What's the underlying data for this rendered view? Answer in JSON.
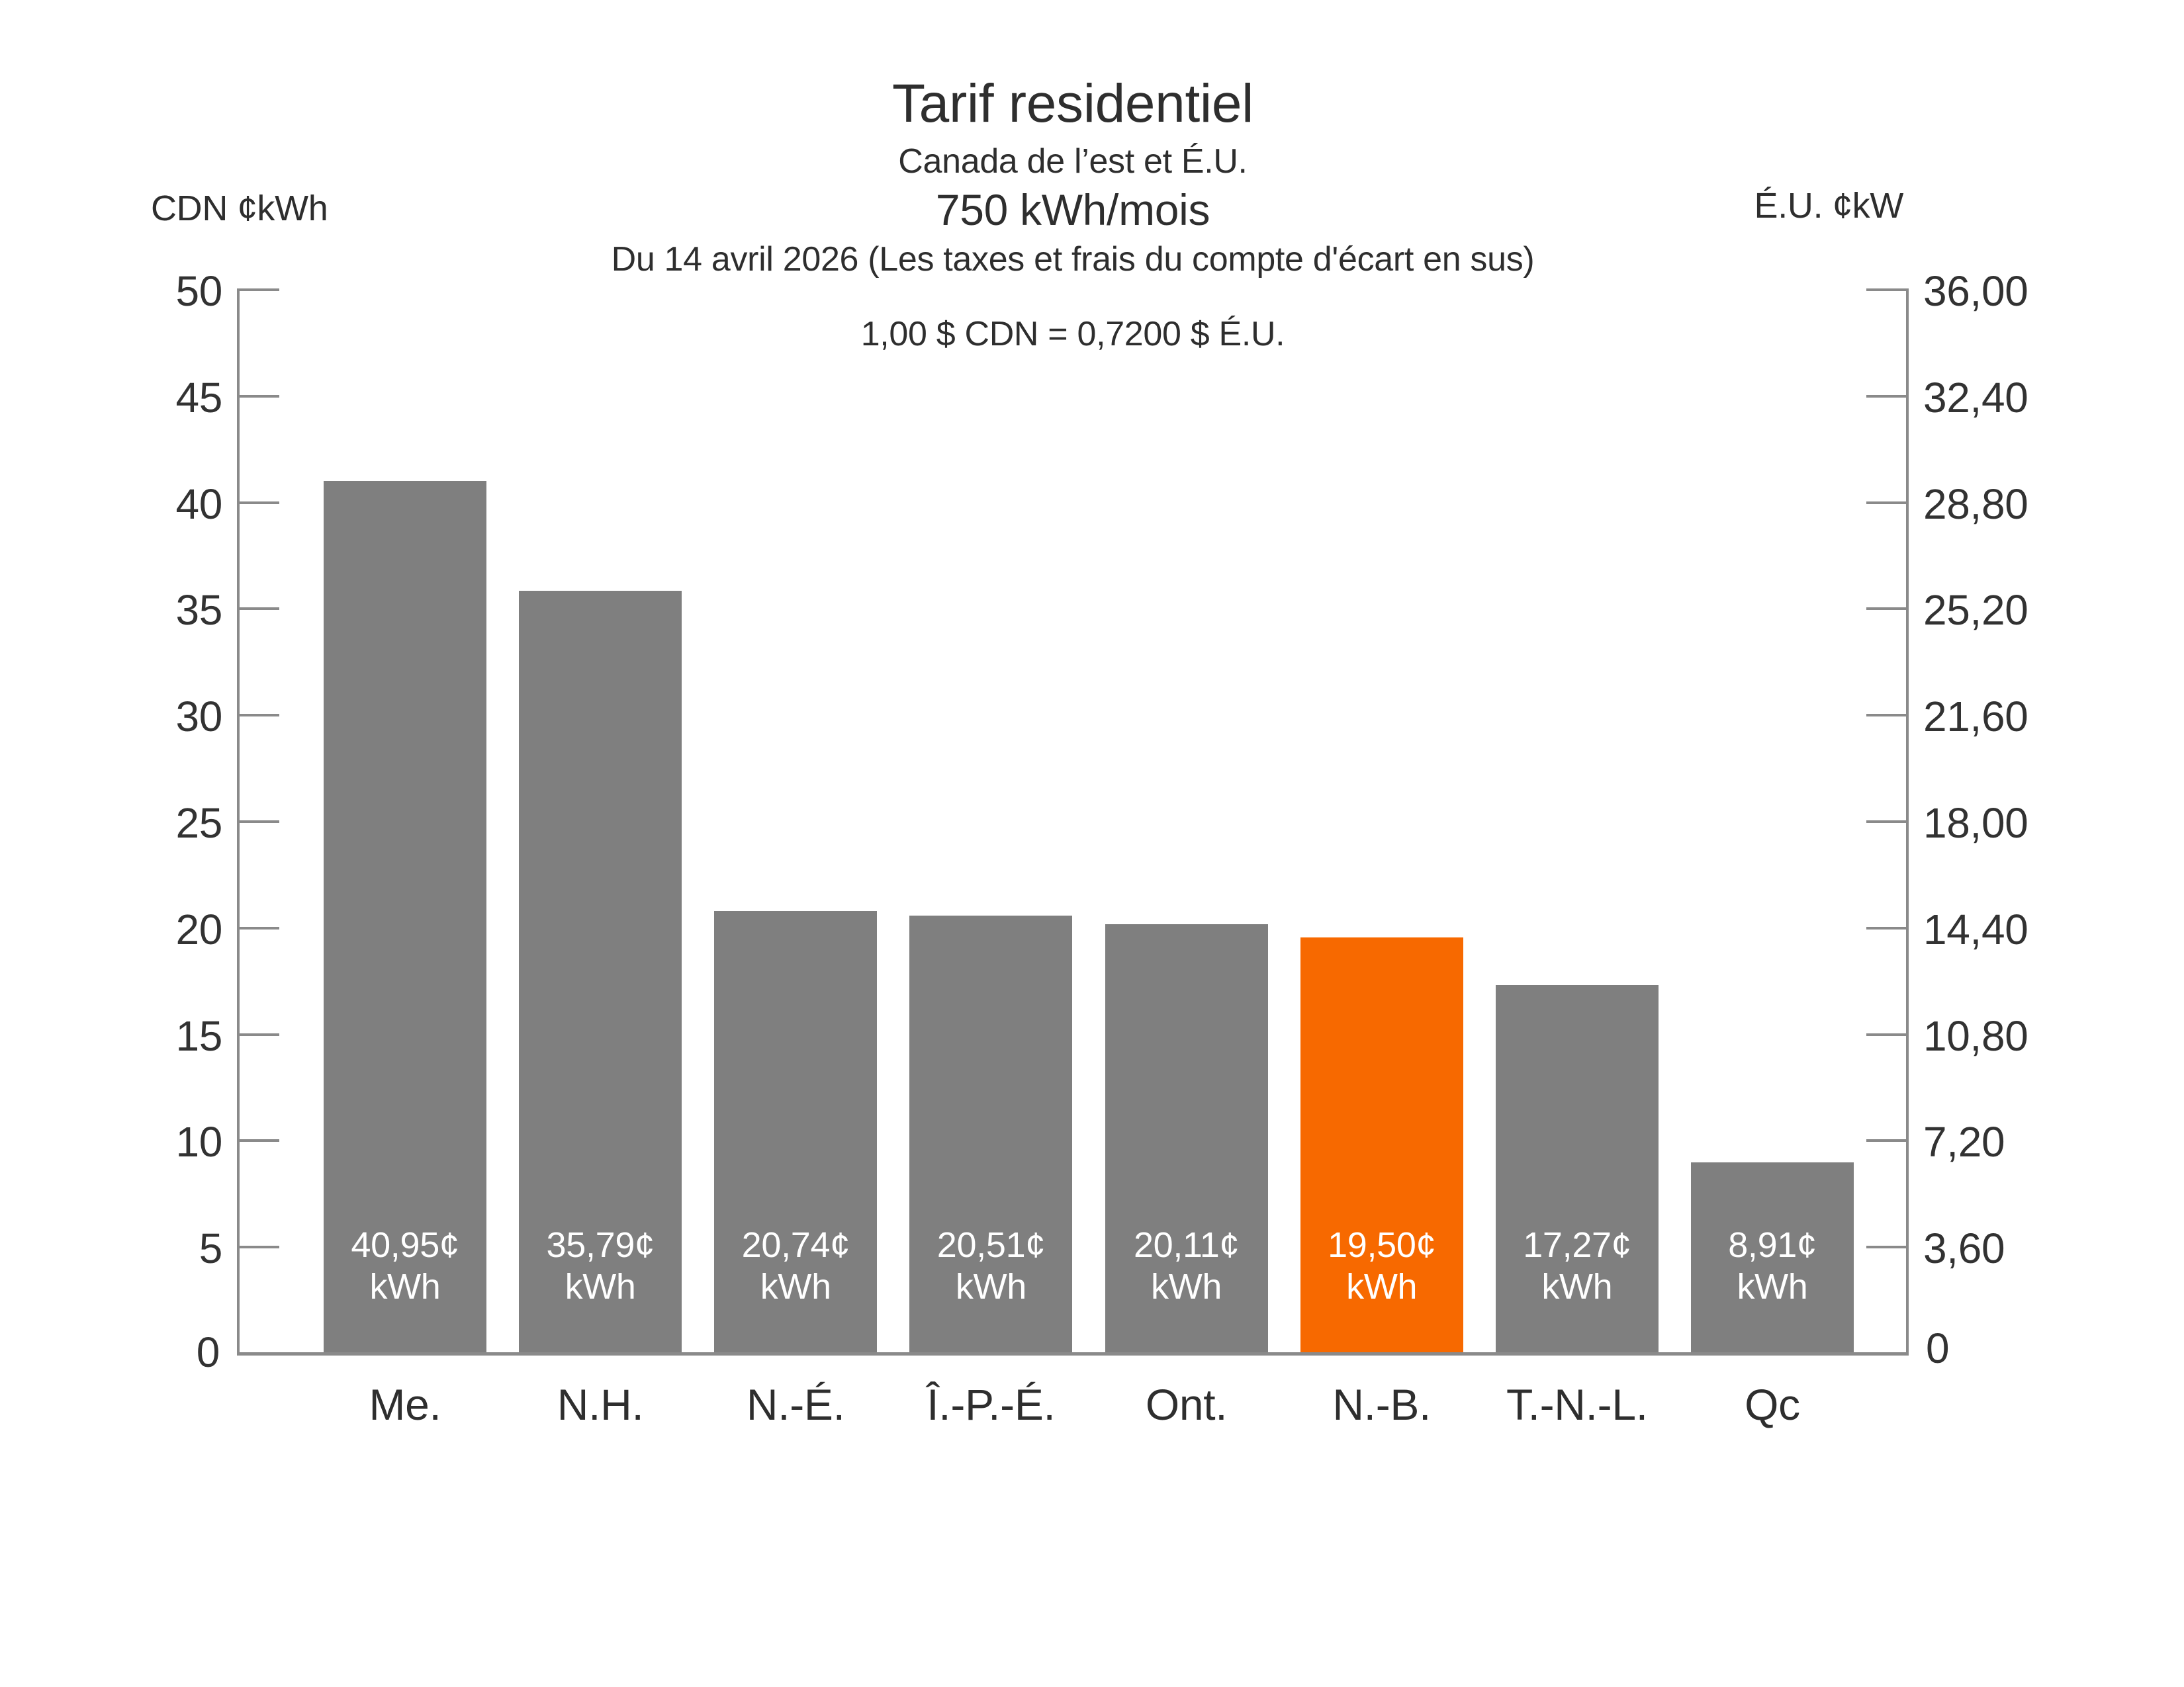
{
  "header": {
    "title": "Tarif residentiel",
    "subtitle": "Canada de l’est et É.U.",
    "consumption": "750 kWh/mois",
    "date_note": "Du 14 avril 2026 (Les taxes et frais du compte d'écart en sus)",
    "exchange_rate": "1,00 $ CDN = 0,7200 $ É.U."
  },
  "axes": {
    "left": {
      "label": "CDN ¢kWh",
      "ticks": [
        "50",
        "45",
        "40",
        "35",
        "30",
        "25",
        "20",
        "15",
        "10",
        "5"
      ],
      "zero_label": "0"
    },
    "right": {
      "label": "É.U. ¢kW",
      "ticks": [
        "36,00",
        "32,40",
        "28,80",
        "25,20",
        "21,60",
        "18,00",
        "14,40",
        "10,80",
        "7,20",
        "3,60"
      ],
      "zero_label": "0"
    }
  },
  "chart_data": {
    "type": "bar",
    "title": "Tarif residentiel",
    "subtitle": "Canada de l’est et É.U. — 750 kWh/mois",
    "categories": [
      "Me.",
      "N.H.",
      "N.-É.",
      "Î.-P.-É.",
      "Ont.",
      "N.-B.",
      "T.-N.-L.",
      "Qc"
    ],
    "values": [
      40.95,
      35.79,
      20.74,
      20.51,
      20.11,
      19.5,
      17.27,
      8.91
    ],
    "bar_labels": [
      [
        "40,95¢",
        "kWh"
      ],
      [
        "35,79¢",
        "kWh"
      ],
      [
        "20,74¢",
        "kWh"
      ],
      [
        "20,51¢",
        "kWh"
      ],
      [
        "20,11¢",
        "kWh"
      ],
      [
        "19,50¢",
        "kWh"
      ],
      [
        "17,27¢",
        "kWh"
      ],
      [
        "8,91¢",
        "kWh"
      ]
    ],
    "highlight_index": 5,
    "ylabel_left": "CDN ¢kWh",
    "ylabel_right": "É.U. ¢kW",
    "ylim": [
      0,
      50
    ],
    "right_axis_ylim": [
      0,
      36.0
    ],
    "grid": false,
    "legend": "none",
    "colors": {
      "bar": "#7f7f7f",
      "highlight": "#f76900",
      "axis": "#8a8a8a",
      "label_text": "#ffffff"
    }
  }
}
